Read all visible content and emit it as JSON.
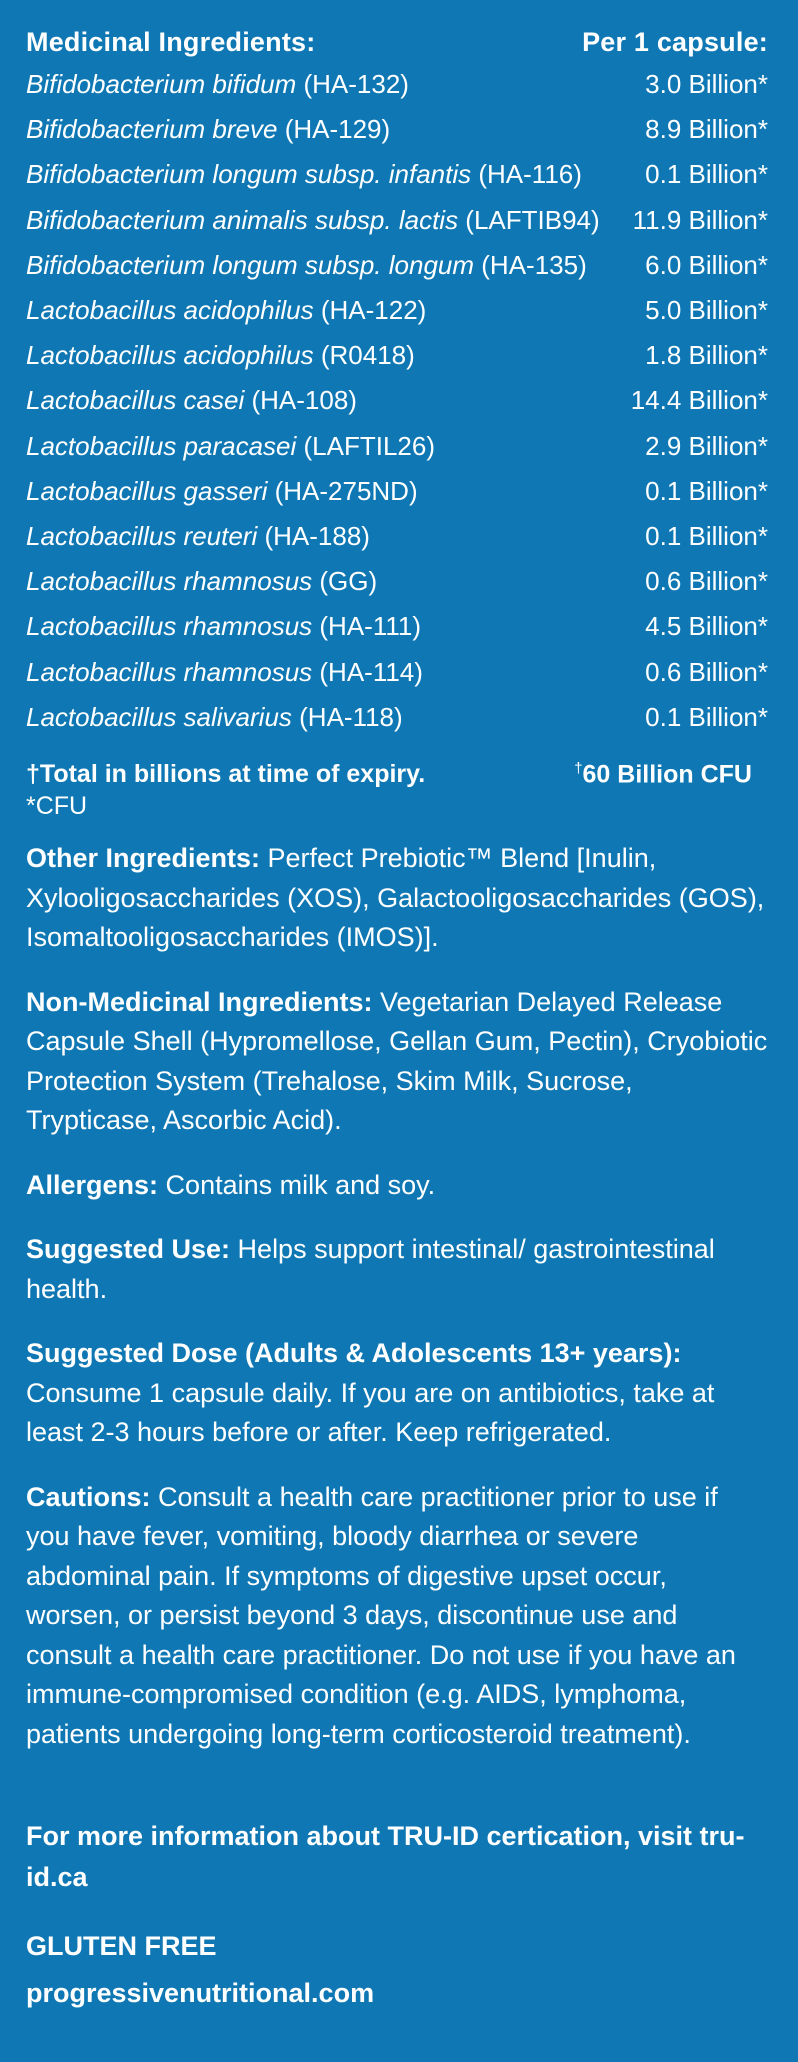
{
  "ingredients_header": {
    "title": "Medicinal Ingredients:",
    "per": "Per 1 capsule:"
  },
  "ingredients": [
    {
      "name": "Bifidobacterium bifidum",
      "strain": " (HA-132)",
      "amount": "3.0 Billion*"
    },
    {
      "name": "Bifidobacterium breve",
      "strain": " (HA-129)",
      "amount": "8.9 Billion*"
    },
    {
      "name": "Bifidobacterium longum subsp. infantis",
      "strain": " (HA-116)",
      "amount": "0.1 Billion*"
    },
    {
      "name": "Bifidobacterium animalis subsp. lactis",
      "strain": " (LAFTIB94)",
      "amount": "11.9 Billion*"
    },
    {
      "name": "Bifidobacterium longum subsp. longum",
      "strain": " (HA-135)",
      "amount": "6.0 Billion*"
    },
    {
      "name": "Lactobacillus acidophilus",
      "strain": " (HA-122)",
      "amount": "5.0 Billion*"
    },
    {
      "name": "Lactobacillus acidophilus",
      "strain": " (R0418)",
      "amount": "1.8 Billion*"
    },
    {
      "name": "Lactobacillus casei",
      "strain": " (HA-108)",
      "amount": "14.4 Billion*"
    },
    {
      "name": "Lactobacillus paracasei",
      "strain": " (LAFTIL26)",
      "amount": "2.9 Billion*"
    },
    {
      "name": "Lactobacillus gasseri",
      "strain": " (HA-275ND)",
      "amount": "0.1 Billion*"
    },
    {
      "name": "Lactobacillus reuteri",
      "strain": " (HA-188)",
      "amount": "0.1 Billion*"
    },
    {
      "name": "Lactobacillus rhamnosus",
      "strain": " (GG)",
      "amount": "0.6 Billion*"
    },
    {
      "name": "Lactobacillus rhamnosus",
      "strain": " (HA-111)",
      "amount": "4.5 Billion*"
    },
    {
      "name": "Lactobacillus rhamnosus",
      "strain": " (HA-114)",
      "amount": "0.6 Billion*"
    },
    {
      "name": "Lactobacillus salivarius",
      "strain": " (HA-118)",
      "amount": "0.1 Billion*"
    }
  ],
  "total": {
    "label": "†Total in billions at time of expiry.",
    "dagger": "†",
    "value": "60 Billion CFU"
  },
  "cfu_note": "*CFU",
  "other_ingredients": {
    "label": "Other Ingredients:",
    "text": " Perfect Prebiotic™ Blend [Inulin, Xylooligosaccharides (XOS), Galactooligosaccharides (GOS), Isomaltooligosaccharides (IMOS)]."
  },
  "non_medicinal": {
    "label": "Non-Medicinal Ingredients:",
    "text": " Vegetarian Delayed Release Capsule Shell (Hypromellose, Gellan Gum, Pectin), Cryobiotic Protection System (Trehalose, Skim Milk, Sucrose, Trypticase, Ascorbic Acid)."
  },
  "allergens": {
    "label": "Allergens:",
    "text": " Contains milk and soy."
  },
  "suggested_use": {
    "label": "Suggested Use:",
    "text": " Helps support intestinal/ gastrointestinal health."
  },
  "suggested_dose": {
    "label": "Suggested Dose (Adults & Adolescents 13+ years):",
    "text": "Consume 1 capsule daily. If you are on antibiotics, take at least 2-3 hours before or after. Keep refrigerated."
  },
  "cautions": {
    "label": "Cautions:",
    "text": " Consult a health care practitioner prior to use if you have fever, vomiting, bloody diarrhea or severe abdominal pain. If symptoms of digestive upset occur, worsen, or persist beyond 3 days, discontinue use and consult a health care practitioner. Do not use if you have an immune-compromised condition (e.g. AIDS, lymphoma, patients undergoing long-term corticosteroid treatment)."
  },
  "more_info": "For more information about TRU-ID certication, visit tru-id.ca",
  "gluten_free": "GLUTEN FREE",
  "website": "progressivenutritional.com",
  "colors": {
    "background": "#0f78b4",
    "text": "#ffffff"
  }
}
